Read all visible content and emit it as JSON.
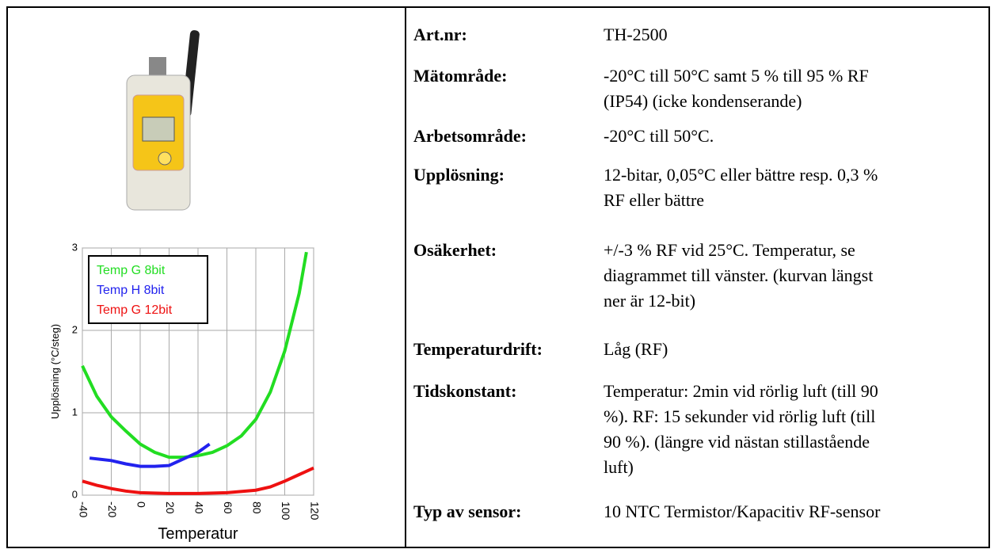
{
  "specs": {
    "rows": [
      {
        "label": "Art.nr:",
        "lines": [
          "TH-2500"
        ]
      },
      {
        "label": "Mätområde:",
        "lines": [
          "-20°C till 50°C samt 5 % till 95 % RF",
          "(IP54) (icke kondenserande)"
        ]
      },
      {
        "label": "Arbetsområde:",
        "lines": [
          "-20°C till 50°C."
        ]
      },
      {
        "label": "Upplösning:",
        "lines": [
          "12-bitar, 0,05°C eller bättre resp. 0,3 %",
          "RF eller bättre"
        ]
      },
      {
        "label": "Osäkerhet:",
        "lines": [
          "+/-3 % RF vid 25°C. Temperatur, se",
          "diagrammet till vänster. (kurvan längst",
          "ner är 12-bit)"
        ]
      },
      {
        "label": "Temperaturdrift:",
        "lines": [
          "Låg (RF)"
        ]
      },
      {
        "label": "Tidskonstant:",
        "lines": [
          "Temperatur: 2min vid rörlig luft (till 90",
          "%). RF: 15 sekunder vid rörlig luft (till",
          "90 %). (längre vid nästan stillastående",
          "luft)"
        ]
      },
      {
        "label": "Typ av sensor:",
        "lines": [
          "10 NTC Termistor/Kapacitiv RF-sensor"
        ]
      }
    ]
  },
  "chart_data": {
    "type": "line",
    "x_label": "Temperatur",
    "y_label": "Upplösning (°C/steg)",
    "xlim": [
      -40,
      120
    ],
    "ylim": [
      0,
      3
    ],
    "xticks": [
      -40,
      -20,
      0,
      20,
      40,
      60,
      80,
      100,
      120
    ],
    "yticks": [
      0,
      1,
      2,
      3
    ],
    "grid": true,
    "series": [
      {
        "name": "Temp G 8bit",
        "color": "#22dd22",
        "x": [
          -40,
          -30,
          -20,
          -10,
          0,
          10,
          20,
          30,
          40,
          50,
          60,
          70,
          80,
          90,
          100,
          110,
          115
        ],
        "values": [
          1.57,
          1.2,
          0.95,
          0.78,
          0.62,
          0.52,
          0.46,
          0.46,
          0.48,
          0.52,
          0.6,
          0.72,
          0.92,
          1.25,
          1.75,
          2.45,
          2.95
        ]
      },
      {
        "name": "Temp H 8bit",
        "color": "#2222ee",
        "x": [
          -35,
          -20,
          -10,
          0,
          10,
          20,
          30,
          40,
          48
        ],
        "values": [
          0.45,
          0.42,
          0.38,
          0.35,
          0.35,
          0.36,
          0.44,
          0.52,
          0.62
        ]
      },
      {
        "name": "Temp G 12bit",
        "color": "#ee1111",
        "x": [
          -40,
          -30,
          -20,
          -10,
          0,
          20,
          40,
          60,
          80,
          90,
          100,
          110,
          120
        ],
        "values": [
          0.17,
          0.12,
          0.08,
          0.05,
          0.03,
          0.02,
          0.02,
          0.03,
          0.06,
          0.1,
          0.17,
          0.25,
          0.33
        ]
      }
    ]
  }
}
